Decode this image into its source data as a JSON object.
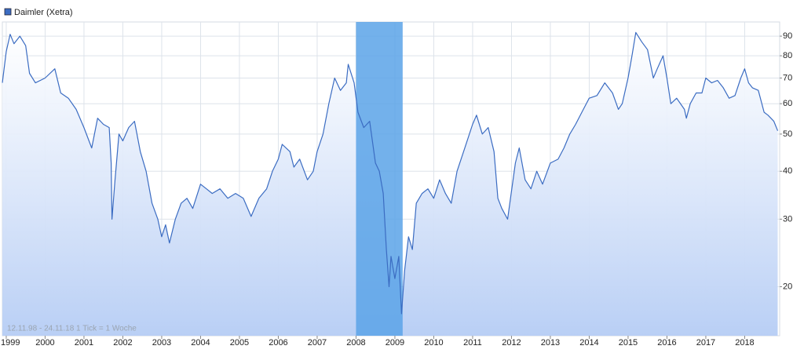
{
  "chart_data": {
    "type": "line",
    "log_scale": true,
    "grid": true,
    "footnote": "12.11.98 - 24.11.18   1 Tick = 1 Woche",
    "xlim": [
      1998.9,
      2018.9
    ],
    "xticks": [
      1999,
      2000,
      2001,
      2002,
      2003,
      2004,
      2005,
      2006,
      2007,
      2008,
      2009,
      2010,
      2011,
      2012,
      2013,
      2014,
      2015,
      2016,
      2017,
      2018
    ],
    "ylim": [
      14.9,
      98
    ],
    "yticks": [
      20,
      30,
      40,
      50,
      60,
      70,
      80,
      90
    ],
    "highlight": {
      "from": 2008.0,
      "to": 2009.2,
      "color": "#5aa3e8"
    },
    "x": [
      1998.9,
      1999.0,
      1999.1,
      1999.2,
      1999.35,
      1999.5,
      1999.6,
      1999.75,
      2000.0,
      2000.25,
      2000.4,
      2000.6,
      2000.8,
      2001.0,
      2001.2,
      2001.35,
      2001.5,
      2001.65,
      2001.7,
      2001.72,
      2001.8,
      2001.9,
      2002.0,
      2002.15,
      2002.3,
      2002.45,
      2002.6,
      2002.75,
      2002.9,
      2003.0,
      2003.1,
      2003.2,
      2003.35,
      2003.5,
      2003.65,
      2003.8,
      2004.0,
      2004.15,
      2004.3,
      2004.5,
      2004.7,
      2004.9,
      2005.1,
      2005.3,
      2005.5,
      2005.7,
      2005.85,
      2006.0,
      2006.1,
      2006.3,
      2006.4,
      2006.55,
      2006.75,
      2006.9,
      2007.0,
      2007.15,
      2007.3,
      2007.45,
      2007.6,
      2007.75,
      2007.8,
      2007.95,
      2008.05,
      2008.2,
      2008.35,
      2008.5,
      2008.6,
      2008.7,
      2008.78,
      2008.85,
      2008.9,
      2009.0,
      2009.1,
      2009.17,
      2009.25,
      2009.35,
      2009.45,
      2009.55,
      2009.7,
      2009.85,
      2010.0,
      2010.15,
      2010.3,
      2010.45,
      2010.6,
      2010.8,
      2011.0,
      2011.1,
      2011.25,
      2011.4,
      2011.55,
      2011.65,
      2011.75,
      2011.9,
      2012.1,
      2012.2,
      2012.35,
      2012.5,
      2012.65,
      2012.8,
      2013.0,
      2013.2,
      2013.35,
      2013.5,
      2013.65,
      2013.85,
      2014.0,
      2014.2,
      2014.4,
      2014.6,
      2014.75,
      2014.85,
      2015.0,
      2015.1,
      2015.2,
      2015.35,
      2015.5,
      2015.65,
      2015.75,
      2015.9,
      2016.0,
      2016.1,
      2016.25,
      2016.45,
      2016.5,
      2016.6,
      2016.75,
      2016.9,
      2017.0,
      2017.15,
      2017.3,
      2017.45,
      2017.6,
      2017.75,
      2017.9,
      2018.0,
      2018.1,
      2018.2,
      2018.35,
      2018.5,
      2018.6,
      2018.75,
      2018.85
    ],
    "series": [
      {
        "name": "Daimler (Xetra)",
        "color": "#3b6cc2",
        "values": [
          68,
          82,
          91,
          86,
          90,
          85,
          72,
          68,
          70,
          74,
          64,
          62,
          58,
          52,
          46,
          55,
          53,
          52,
          42,
          30,
          38,
          50,
          48,
          52,
          54,
          45,
          40,
          33,
          30,
          27,
          29,
          26,
          30,
          33,
          34,
          32,
          37,
          36,
          35,
          36,
          34,
          35,
          34,
          30.5,
          34,
          36,
          40,
          43,
          47,
          45,
          41,
          43,
          38,
          40,
          45,
          50,
          60,
          70,
          65,
          68,
          76,
          68,
          57,
          52,
          54,
          42,
          40,
          35,
          25,
          20,
          24,
          21,
          24,
          17,
          22,
          27,
          25,
          33,
          35,
          36,
          34,
          38,
          35,
          33,
          40,
          46,
          53,
          56,
          50,
          52,
          45,
          34,
          32,
          30,
          42,
          46,
          38,
          36,
          40,
          37,
          42,
          43,
          46,
          50,
          53,
          58,
          62,
          63,
          68,
          64,
          58,
          60,
          70,
          80,
          92,
          87,
          83,
          70,
          74,
          80,
          70,
          60,
          62,
          58,
          55,
          60,
          64,
          64,
          70,
          68,
          69,
          66,
          62,
          63,
          70,
          74,
          68,
          66,
          65,
          57,
          56,
          54,
          51
        ]
      }
    ]
  }
}
